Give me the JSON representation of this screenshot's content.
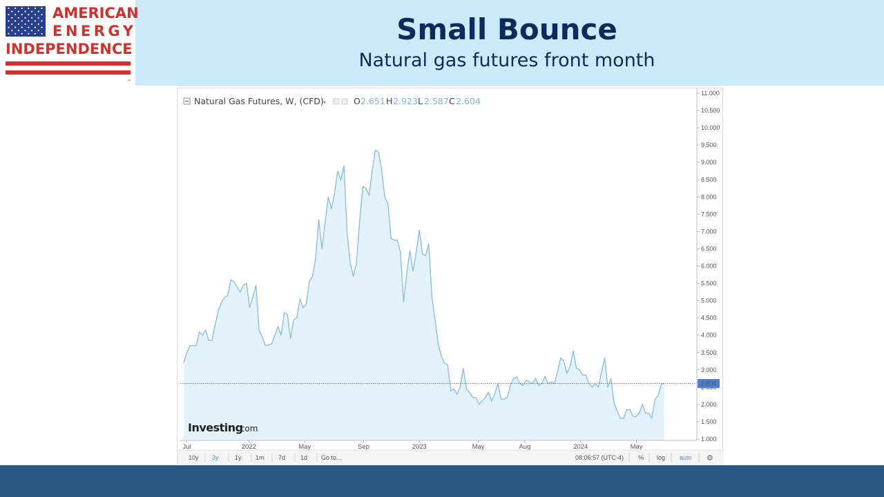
{
  "slide": {
    "title": "Small Bounce",
    "subtitle": "Natural gas futures front month"
  },
  "logo": {
    "line1": "AMERICAN",
    "line2": "ENERGY",
    "line3": "INDEPENDENCE",
    "tm": "™",
    "flag_blue": "#2a3f8c",
    "flag_red": "#d0312d"
  },
  "colors": {
    "header_bg": "#cceaf9",
    "title_color": "#0d2a5c",
    "footer_bg": "#2a5683",
    "line": "#8dbfe0",
    "area": "#e3f2fb",
    "price_label_bg": "#4a7fd6"
  },
  "legend": {
    "name": "Natural Gas Futures, W, (CFD)",
    "o_label": "O",
    "o_val": "2.651",
    "h_label": "H",
    "h_val": "2.923",
    "l_label": "L",
    "l_val": "2.587",
    "c_label": "C",
    "c_val": "2.604"
  },
  "watermark": {
    "brand": "Investing",
    "suffix": ".com"
  },
  "toolbar": {
    "ranges": [
      "10y",
      "3y",
      "1y",
      "1m",
      "7d",
      "1d"
    ],
    "active_range": "3y",
    "goto": "Go to...",
    "time": "08:06:57 (UTC-4)",
    "pct": "%",
    "log": "log",
    "auto": "auto"
  },
  "chart_data": {
    "type": "area",
    "title": "Natural Gas Futures, W, (CFD)",
    "xlabel": "",
    "ylabel": "",
    "ylim": [
      1.0,
      11.0
    ],
    "y_ticks": [
      "1.000",
      "1.500",
      "2.000",
      "2.500",
      "3.000",
      "3.500",
      "4.000",
      "4.500",
      "5.000",
      "5.500",
      "6.000",
      "6.500",
      "7.000",
      "7.500",
      "8.000",
      "8.500",
      "9.000",
      "9.500",
      "10.000",
      "10.500",
      "11.000"
    ],
    "x_tick_labels": [
      "Jul",
      "2022",
      "May",
      "Sep",
      "2023",
      "May",
      "Aug",
      "2024",
      "May"
    ],
    "last_price": 2.604,
    "last_price_label": "2.604",
    "grid": false,
    "series": [
      {
        "name": "Natural Gas Futures",
        "values": [
          3.2,
          3.5,
          3.7,
          3.7,
          3.7,
          4.1,
          4.0,
          4.15,
          3.85,
          3.85,
          4.3,
          4.7,
          4.95,
          5.1,
          5.15,
          5.6,
          5.55,
          5.4,
          5.25,
          5.45,
          5.5,
          4.8,
          5.1,
          5.45,
          4.15,
          3.95,
          3.7,
          3.72,
          3.75,
          4.0,
          4.25,
          4.0,
          4.65,
          4.6,
          3.9,
          4.45,
          4.5,
          5.05,
          4.8,
          4.9,
          5.55,
          5.7,
          6.25,
          7.35,
          6.5,
          7.25,
          8.0,
          7.65,
          8.1,
          8.75,
          8.5,
          8.9,
          7.0,
          6.1,
          5.7,
          6.1,
          7.3,
          8.3,
          8.25,
          8.05,
          8.75,
          9.35,
          9.3,
          8.8,
          8.0,
          7.8,
          6.8,
          6.75,
          6.75,
          6.4,
          4.95,
          5.8,
          6.45,
          5.85,
          6.4,
          7.05,
          6.35,
          6.3,
          6.65,
          5.1,
          4.45,
          3.75,
          3.4,
          3.2,
          3.15,
          2.4,
          2.45,
          2.3,
          2.5,
          3.05,
          2.45,
          2.35,
          2.2,
          2.2,
          2.0,
          2.1,
          2.2,
          2.35,
          2.1,
          2.3,
          2.6,
          2.15,
          2.15,
          2.2,
          2.55,
          2.75,
          2.8,
          2.6,
          2.55,
          2.7,
          2.65,
          2.6,
          2.75,
          2.55,
          2.6,
          2.8,
          2.6,
          2.65,
          2.6,
          2.95,
          3.35,
          3.25,
          2.9,
          3.1,
          3.55,
          3.05,
          3.0,
          2.85,
          2.85,
          2.6,
          2.5,
          2.6,
          2.5,
          2.95,
          3.35,
          2.5,
          2.75,
          2.05,
          1.8,
          1.6,
          1.6,
          1.85,
          1.85,
          1.65,
          1.65,
          1.75,
          2.0,
          1.75,
          1.75,
          1.6,
          2.15,
          2.25,
          2.6,
          2.6
        ]
      }
    ]
  }
}
